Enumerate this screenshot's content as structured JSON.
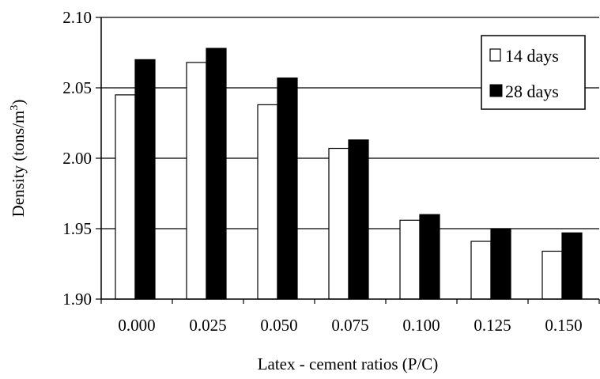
{
  "chart_data": {
    "type": "bar",
    "title": "",
    "xlabel": "Latex - cement ratios (P/C)",
    "ylabel": "Density (tons/m",
    "ylabel_superscript": "3",
    "ylabel_suffix": ")",
    "categories": [
      "0.000",
      "0.025",
      "0.050",
      "0.075",
      "0.100",
      "0.125",
      "0.150"
    ],
    "series": [
      {
        "name": "14 days",
        "color": "#ffffff",
        "values": [
          2.045,
          2.068,
          2.038,
          2.007,
          1.956,
          1.941,
          1.934
        ]
      },
      {
        "name": "28 days",
        "color": "#000000",
        "values": [
          2.07,
          2.078,
          2.057,
          2.013,
          1.96,
          1.95,
          1.947
        ]
      }
    ],
    "ylim": [
      1.9,
      2.1
    ],
    "yticks": [
      "1.90",
      "1.95",
      "2.00",
      "2.05",
      "2.10"
    ],
    "grid": true,
    "legend_position": "top-right"
  }
}
